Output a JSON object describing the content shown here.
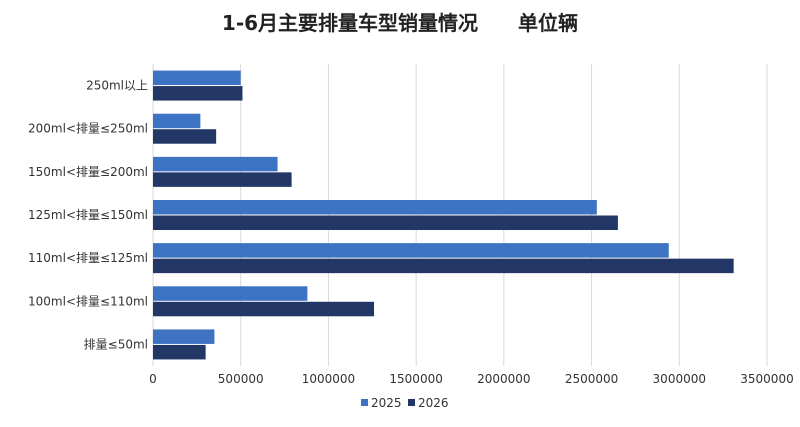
{
  "colors": {
    "series_2025": "#3e72c2",
    "series_2026": "#223766",
    "grid": "#d9d9d9",
    "background": "#ffffff"
  },
  "chart_data": {
    "type": "bar",
    "orientation": "horizontal",
    "title": "1-6月主要排量车型销量情况　　单位辆",
    "categories": [
      "250ml以上",
      "200ml<排量≤250ml",
      "150ml<排量≤200ml",
      "125ml<排量≤150ml",
      "110ml<排量≤125ml",
      "100ml<排量≤110ml",
      "排量≤50ml"
    ],
    "series": [
      {
        "name": "2025",
        "values": [
          500000,
          270000,
          710000,
          2530000,
          2940000,
          880000,
          350000
        ]
      },
      {
        "name": "2026",
        "values": [
          510000,
          360000,
          790000,
          2650000,
          3310000,
          1260000,
          300000
        ]
      }
    ],
    "xlim": [
      0,
      3500000
    ],
    "xticks": [
      0,
      500000,
      1000000,
      1500000,
      2000000,
      2500000,
      3000000,
      3500000
    ],
    "xtick_labels": [
      "0",
      "500000",
      "1000000",
      "1500000",
      "2000000",
      "2500000",
      "3000000",
      "3500000"
    ],
    "grid": true,
    "legend_position": "bottom"
  }
}
